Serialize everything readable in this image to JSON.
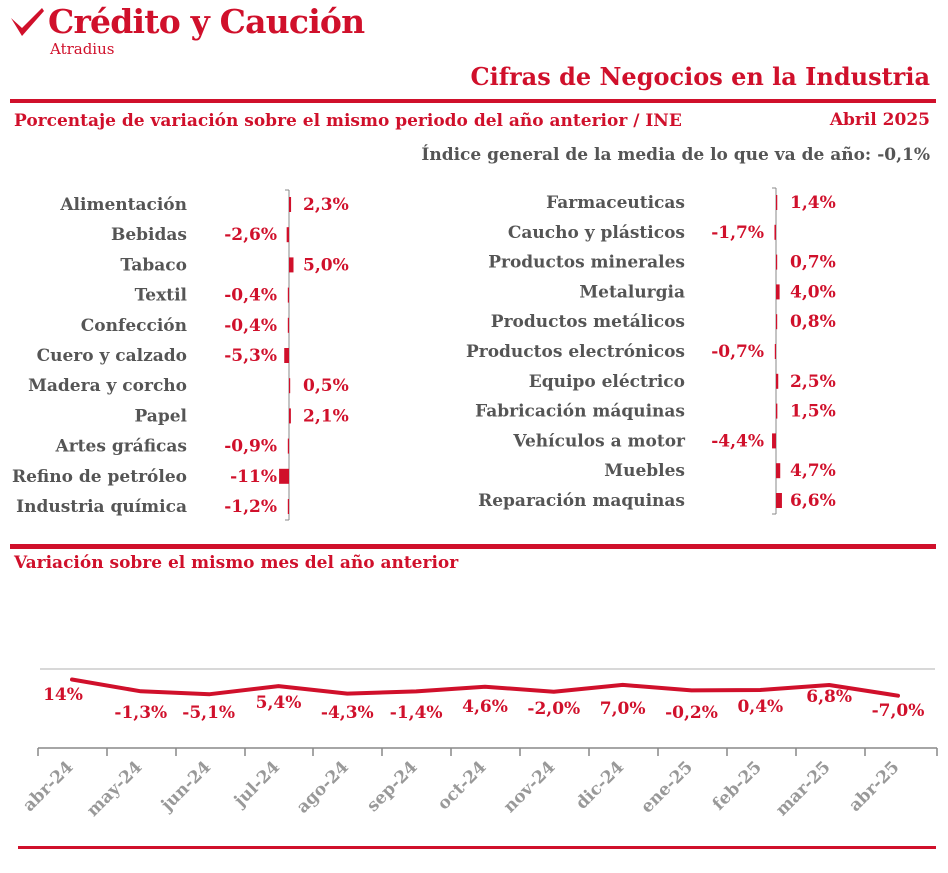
{
  "brand": {
    "name": "Crédito y Caución",
    "sub": "Atradius",
    "logo_icon": "red-checkmark-logo"
  },
  "title": "Cifras de Negocios en la Industria",
  "subtitle": "Porcentaje de variación sobre el mismo periodo del año anterior / INE",
  "date": "Abril 2025",
  "index": {
    "label": "Índice general de la media de lo que va de año:",
    "value": "-0,1%"
  },
  "section2_title": "Variación sobre el mismo mes del año anterior",
  "colors": {
    "accent": "#d0102b",
    "text": "#555555",
    "axis": "#888888"
  },
  "chart_data": [
    {
      "type": "bar",
      "orientation": "horizontal",
      "categories": [
        "Alimentación",
        "Bebidas",
        "Tabaco",
        "Textil",
        "Confección",
        "Cuero y calzado",
        "Madera y corcho",
        "Papel",
        "Artes gráficas",
        "Refino de petróleo",
        "Industria química"
      ],
      "values": [
        2.3,
        -2.6,
        5.0,
        -0.4,
        -0.4,
        -5.3,
        0.5,
        2.1,
        -0.9,
        -11,
        -1.2
      ],
      "labels": [
        "2,3%",
        "-2,6%",
        "5,0%",
        "-0,4%",
        "-0,4%",
        "-5,3%",
        "0,5%",
        "2,1%",
        "-0,9%",
        "-11%",
        "-1,2%"
      ]
    },
    {
      "type": "bar",
      "orientation": "horizontal",
      "categories": [
        "Farmaceuticas",
        "Caucho y plásticos",
        "Productos minerales",
        "Metalurgia",
        "Productos metálicos",
        "Productos electrónicos",
        "Equipo eléctrico",
        "Fabricación máquinas",
        "Vehículos a motor",
        "Muebles",
        "Reparación maquinas"
      ],
      "values": [
        1.4,
        -1.7,
        0.7,
        4.0,
        0.8,
        -0.7,
        2.5,
        1.5,
        -4.4,
        4.7,
        6.6
      ],
      "labels": [
        "1,4%",
        "-1,7%",
        "0,7%",
        "4,0%",
        "0,8%",
        "-0,7%",
        "2,5%",
        "1,5%",
        "-4,4%",
        "4,7%",
        "6,6%"
      ]
    },
    {
      "type": "line",
      "x": [
        "abr-24",
        "may-24",
        "jun-24",
        "jul-24",
        "ago-24",
        "sep-24",
        "oct-24",
        "nov-24",
        "dic-24",
        "ene-25",
        "feb-25",
        "mar-25",
        "abr-25"
      ],
      "values": [
        14,
        -1.3,
        -5.1,
        5.4,
        -4.3,
        -1.4,
        4.6,
        -2.0,
        7.0,
        -0.2,
        0.4,
        6.8,
        -7.0
      ],
      "labels": [
        "14%",
        "-1,3%",
        "-5,1%",
        "5,4%",
        "-4,3%",
        "-1,4%",
        "4,6%",
        "-2,0%",
        "7,0%",
        "-0,2%",
        "0,4%",
        "6,8%",
        "-7,0%"
      ]
    }
  ]
}
